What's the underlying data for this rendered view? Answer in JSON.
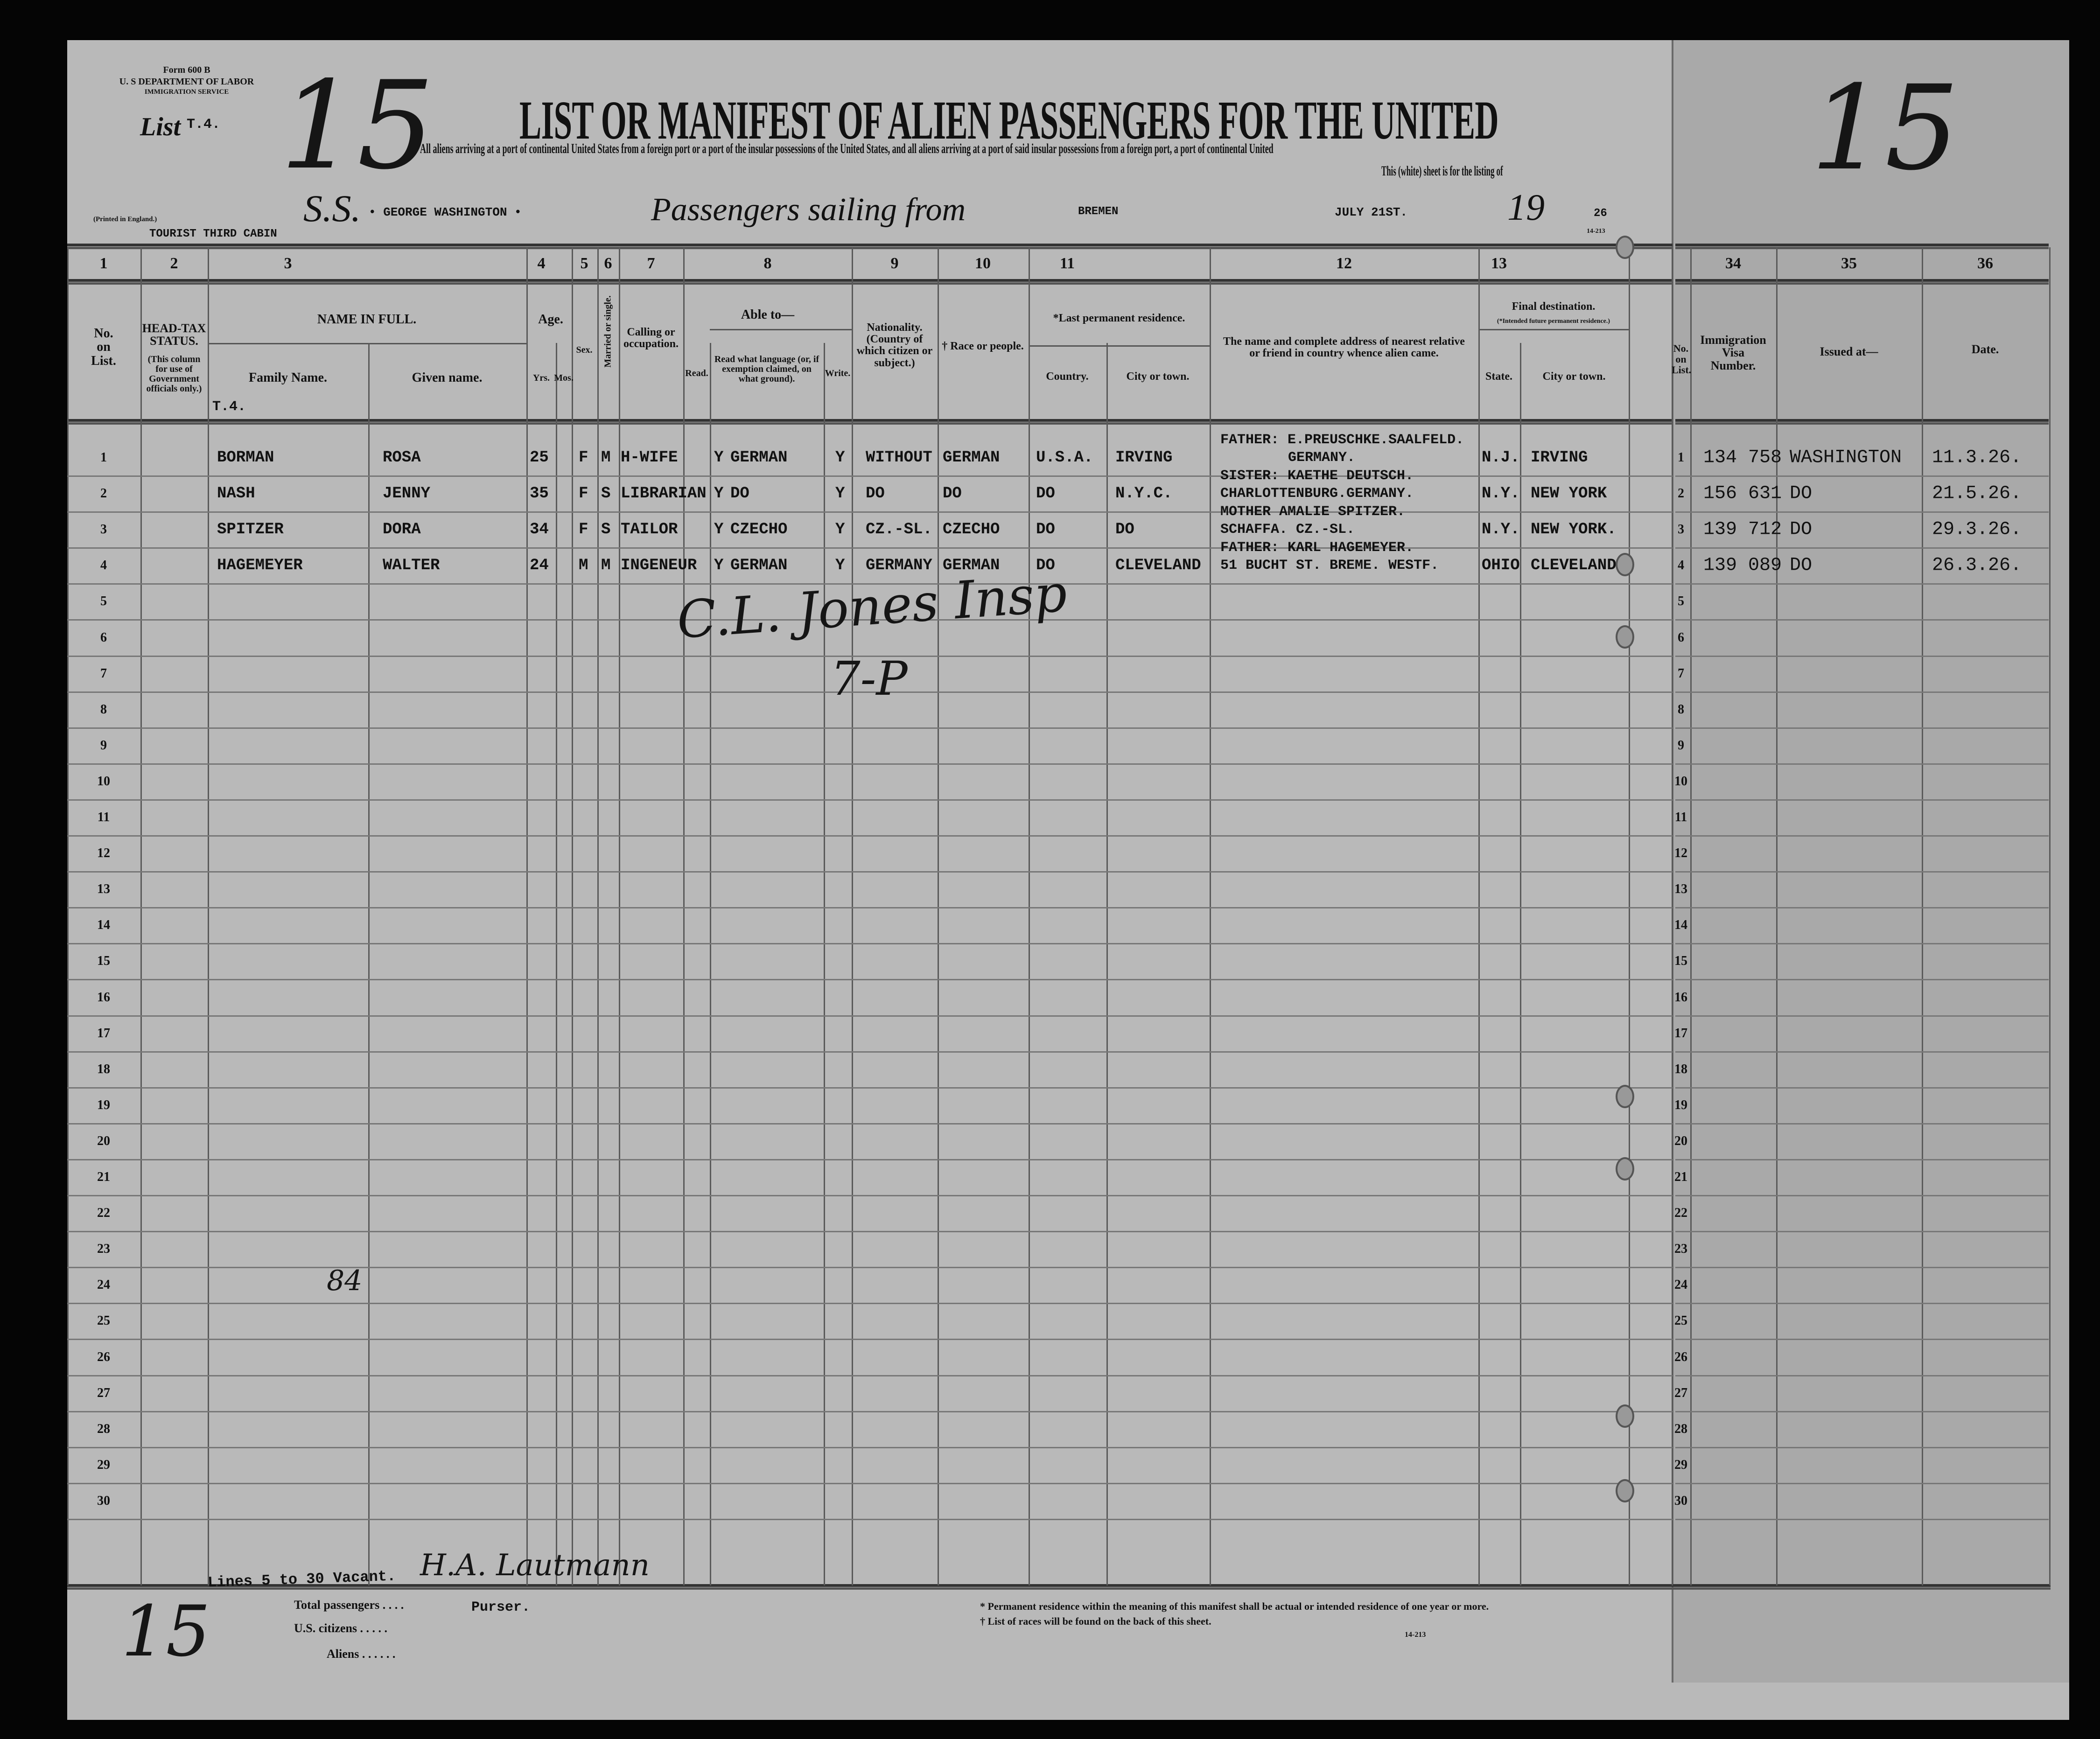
{
  "header": {
    "form": "Form 600 B",
    "department": "U. S DEPARTMENT OF LABOR",
    "service": "IMMIGRATION SERVICE",
    "list_label": "List",
    "list_value": "T.4.",
    "sheet_number": "15",
    "title": "LIST OR MANIFEST OF ALIEN PASSENGERS FOR THE UNITED",
    "subtitle": "All aliens arriving at a port of continental United States from a foreign port or a port of the insular possessions of the United States, and all aliens arriving at a port of said insular possessions from a foreign port, a port of continental United",
    "subtitle2": "This (white) sheet is for the listing of",
    "ss_label": "S.S.",
    "ship": "• GEORGE WASHINGTON •",
    "sailing_label": "Passengers sailing from",
    "port": "BREMEN",
    "date": "JULY 21ST.",
    "year_prefix": "19",
    "year": "26",
    "form_code": "14-213",
    "printed": "(Printed in England.)",
    "class": "TOURIST THIRD CABIN"
  },
  "columns": {
    "numbers": [
      "1",
      "2",
      "3",
      "4",
      "5",
      "6",
      "7",
      "8",
      "9",
      "10",
      "11",
      "12",
      "13",
      "34",
      "35",
      "36"
    ],
    "no_on_list": "No. on List.",
    "head_tax": "HEAD-TAX STATUS.",
    "head_tax_note": "(This column for use of Government officials only.)",
    "name_in_full": "NAME IN FULL.",
    "family_name": "Family Name.",
    "given_name": "Given name.",
    "age": "Age.",
    "yrs": "Yrs.",
    "mos": "Mos.",
    "sex": "Sex.",
    "married": "Married or single.",
    "calling": "Calling or occupation.",
    "able_to": "Able to—",
    "read": "Read.",
    "read_what": "Read what language (or, if exemption claimed, on what ground).",
    "write": "Write.",
    "nationality": "Nationality. (Country of which citizen or subject.)",
    "race": "† Race or people.",
    "last_residence": "*Last permanent residence.",
    "country": "Country.",
    "city": "City or town.",
    "relative": "The name and complete address of nearest relative or friend in country whence alien came.",
    "final_destination": "Final destination.",
    "final_note": "(*Intended future permanent residence.)",
    "state": "State.",
    "city2": "City or town.",
    "no_on_list_right": "No. on List.",
    "visa": "Immigration Visa Number.",
    "issued_at": "Issued at—",
    "date": "Date.",
    "list_mark": "T.4."
  },
  "rows": [
    {
      "no": "1",
      "family": "BORMAN",
      "given": "ROSA",
      "age": "25",
      "sex": "F",
      "marital": "M",
      "occupation": "H-WIFE",
      "read": "Y",
      "language": "GERMAN",
      "write": "Y",
      "nationality": "WITHOUT",
      "race": "GERMAN",
      "country": "U.S.A.",
      "city": "IRVING",
      "relative": [
        "FATHER: E.PREUSCHKE.SAALFELD.",
        "GERMANY."
      ],
      "state": "N.J.",
      "dest_city": "IRVING",
      "visa": "134 758",
      "issued": "WASHINGTON",
      "visa_date": "11.3.26."
    },
    {
      "no": "2",
      "family": "NASH",
      "given": "JENNY",
      "age": "35",
      "sex": "F",
      "marital": "S",
      "occupation": "LIBRARIAN",
      "read": "Y",
      "language": "DO",
      "write": "Y",
      "nationality": "DO",
      "race": "DO",
      "country": "DO",
      "city": "N.Y.C.",
      "relative": [
        "SISTER: KAETHE DEUTSCH.",
        "CHARLOTTENBURG.GERMANY."
      ],
      "state": "N.Y.",
      "dest_city": "NEW YORK",
      "visa": "156 631",
      "issued": "DO",
      "visa_date": "21.5.26."
    },
    {
      "no": "3",
      "family": "SPITZER",
      "given": "DORA",
      "age": "34",
      "sex": "F",
      "marital": "S",
      "occupation": "TAILOR",
      "read": "Y",
      "language": "CZECHO",
      "write": "Y",
      "nationality": "CZ.-SL.",
      "race": "CZECHO",
      "country": "DO",
      "city": "DO",
      "relative": [
        "MOTHER AMALIE SPITZER.",
        "SCHAFFA. CZ.-SL."
      ],
      "state": "N.Y.",
      "dest_city": "NEW YORK.",
      "visa": "139 712",
      "issued": "DO",
      "visa_date": "29.3.26."
    },
    {
      "no": "4",
      "family": "HAGEMEYER",
      "given": "WALTER",
      "age": "24",
      "sex": "M",
      "marital": "M",
      "occupation": "INGENEUR",
      "read": "Y",
      "language": "GERMAN",
      "write": "Y",
      "nationality": "GERMANY",
      "race": "GERMAN",
      "country": "DO",
      "city": "CLEVELAND",
      "relative": [
        "FATHER: KARL HAGEMEYER.",
        "51 BUCHT ST. BREME. WESTF."
      ],
      "state": "OHIO",
      "dest_city": "CLEVELAND.",
      "visa": "139 089",
      "issued": "DO",
      "visa_date": "26.3.26."
    }
  ],
  "row_count": 30,
  "handwritten": {
    "inspector": "C.L. Jones Insp",
    "initials": "7-P",
    "note_24": "84",
    "footer_number": "15"
  },
  "footer": {
    "vacant": "Lines 5 to 30 Vacant.",
    "purser": "Purser.",
    "total_passengers": "Total passengers . . . .",
    "us_citizens": "U.S. citizens . . . . .",
    "aliens": "Aliens . . . . . .",
    "footnote1": "* Permanent residence within the meaning of this manifest shall be actual or intended residence of one year or more.",
    "footnote2": "† List of races will be found on the back of this sheet.",
    "form_code": "14-213"
  }
}
